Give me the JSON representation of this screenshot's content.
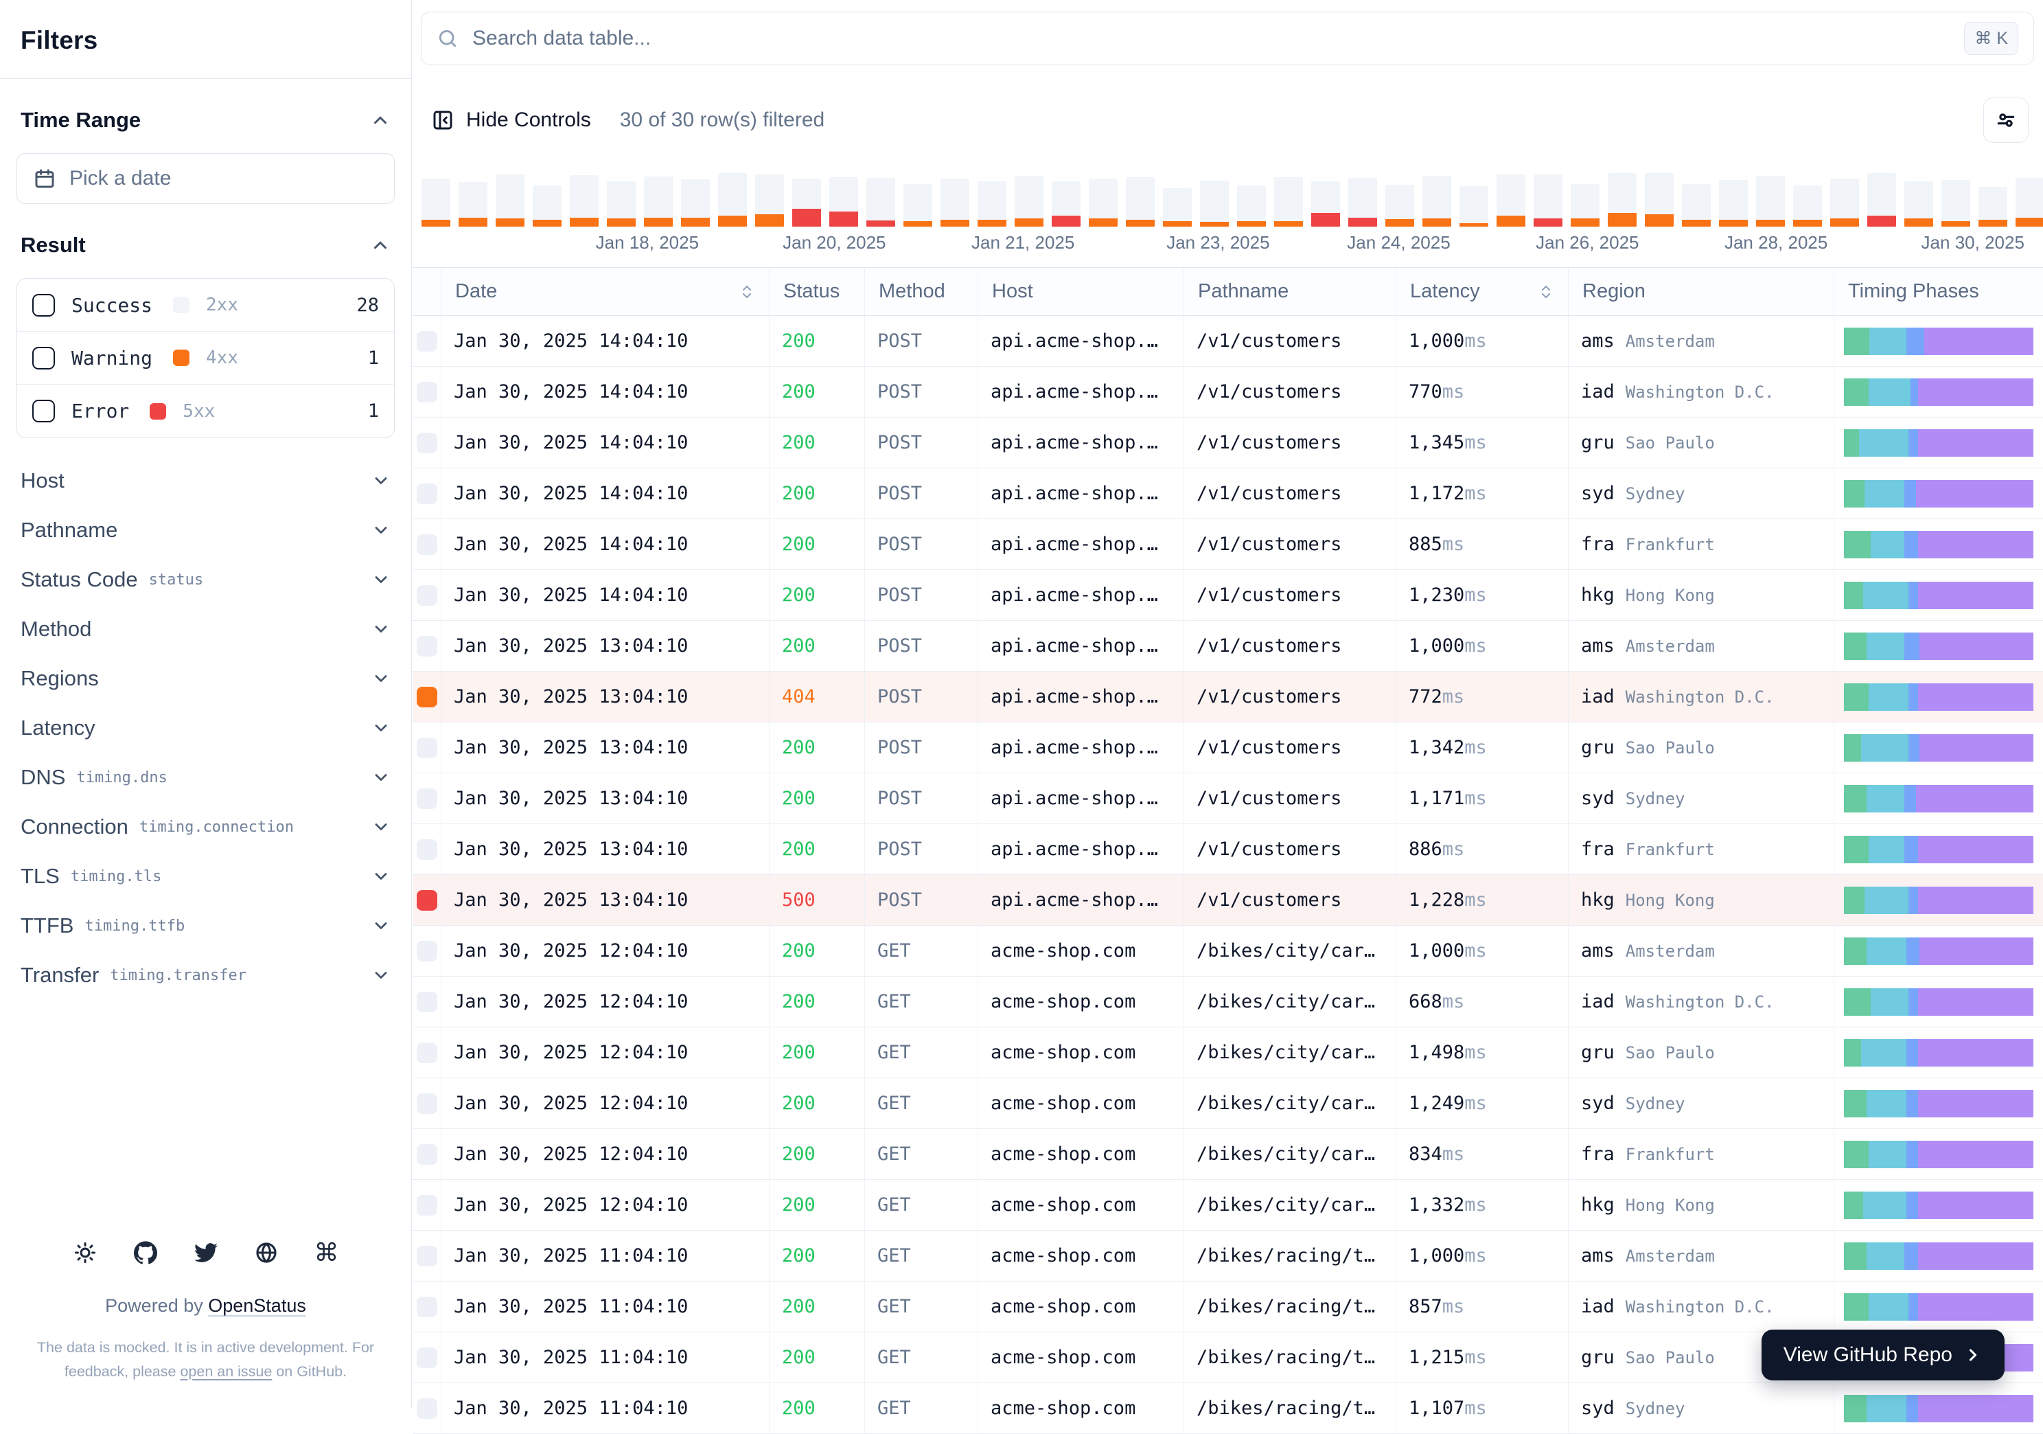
{
  "sidebar": {
    "title": "Filters",
    "time_range": {
      "label": "Time Range",
      "date_placeholder": "Pick a date"
    },
    "result": {
      "label": "Result",
      "options": [
        {
          "label": "Success",
          "code": "2xx",
          "count": "28",
          "color": "#f1f5f9",
          "key": "success"
        },
        {
          "label": "Warning",
          "code": "4xx",
          "count": "1",
          "color": "#f97316",
          "key": "warning"
        },
        {
          "label": "Error",
          "code": "5xx",
          "count": "1",
          "color": "#ef4444",
          "key": "error"
        }
      ]
    },
    "sections": [
      {
        "label": "Host",
        "code": ""
      },
      {
        "label": "Pathname",
        "code": ""
      },
      {
        "label": "Status Code",
        "code": "status"
      },
      {
        "label": "Method",
        "code": ""
      },
      {
        "label": "Regions",
        "code": ""
      },
      {
        "label": "Latency",
        "code": ""
      },
      {
        "label": "DNS",
        "code": "timing.dns"
      },
      {
        "label": "Connection",
        "code": "timing.connection"
      },
      {
        "label": "TLS",
        "code": "timing.tls"
      },
      {
        "label": "TTFB",
        "code": "timing.ttfb"
      },
      {
        "label": "Transfer",
        "code": "timing.transfer"
      }
    ],
    "footer": {
      "powered_by": "Powered by ",
      "powered_link": "OpenStatus",
      "note_line1": "The data is mocked. It is in active development. For",
      "note_line2_pre": "feedback, please ",
      "note_link": "open an issue",
      "note_line2_post": " on GitHub."
    }
  },
  "search": {
    "placeholder": "Search data table...",
    "shortcut": "⌘ K"
  },
  "controls": {
    "hide_label": "Hide Controls",
    "filtered_text": "30 of 30 row(s) filtered"
  },
  "chart_data": {
    "type": "bar",
    "title": "",
    "xlabel": "",
    "ylabel": "",
    "legend": false,
    "colors": {
      "success": "#f1f5f9",
      "warning": "#f97316",
      "error": "#ef4444"
    },
    "x_labels": [
      {
        "text": "Jan 18, 2025",
        "pos": 14.0
      },
      {
        "text": "Jan 20, 2025",
        "pos": 25.6
      },
      {
        "text": "Jan 21, 2025",
        "pos": 37.3
      },
      {
        "text": "Jan 23, 2025",
        "pos": 49.4
      },
      {
        "text": "Jan 24, 2025",
        "pos": 60.6
      },
      {
        "text": "Jan 26, 2025",
        "pos": 72.3
      },
      {
        "text": "Jan 28, 2025",
        "pos": 84.0
      },
      {
        "text": "Jan 30, 2025",
        "pos": 96.2
      }
    ],
    "bars": [
      [
        60,
        10,
        "w"
      ],
      [
        52,
        13,
        "w"
      ],
      [
        64,
        12,
        "w"
      ],
      [
        50,
        10,
        "w"
      ],
      [
        62,
        13,
        "w"
      ],
      [
        54,
        12,
        "w"
      ],
      [
        60,
        13,
        "w"
      ],
      [
        56,
        13,
        "w"
      ],
      [
        62,
        16,
        "w"
      ],
      [
        58,
        18,
        "w"
      ],
      [
        44,
        26,
        "e"
      ],
      [
        50,
        22,
        "e"
      ],
      [
        62,
        9,
        "e"
      ],
      [
        54,
        8,
        "w"
      ],
      [
        60,
        10,
        "w"
      ],
      [
        56,
        10,
        "w"
      ],
      [
        62,
        12,
        "w"
      ],
      [
        50,
        16,
        "e"
      ],
      [
        58,
        12,
        "w"
      ],
      [
        62,
        10,
        "w"
      ],
      [
        48,
        8,
        "w"
      ],
      [
        60,
        7,
        "w"
      ],
      [
        52,
        8,
        "w"
      ],
      [
        64,
        8,
        "w"
      ],
      [
        46,
        20,
        "e"
      ],
      [
        58,
        13,
        "e"
      ],
      [
        50,
        11,
        "w"
      ],
      [
        62,
        12,
        "w"
      ],
      [
        54,
        5,
        "w"
      ],
      [
        60,
        16,
        "w"
      ],
      [
        64,
        12,
        "e"
      ],
      [
        50,
        12,
        "w"
      ],
      [
        58,
        20,
        "w"
      ],
      [
        62,
        18,
        "w"
      ],
      [
        52,
        10,
        "w"
      ],
      [
        58,
        10,
        "w"
      ],
      [
        64,
        10,
        "w"
      ],
      [
        50,
        10,
        "w"
      ],
      [
        58,
        12,
        "w"
      ],
      [
        62,
        16,
        "e"
      ],
      [
        54,
        12,
        "w"
      ],
      [
        60,
        8,
        "w"
      ],
      [
        48,
        10,
        "w"
      ],
      [
        58,
        13,
        "w"
      ]
    ]
  },
  "table": {
    "columns": [
      {
        "label": "Date",
        "sortable": true
      },
      {
        "label": "Status",
        "sortable": false
      },
      {
        "label": "Method",
        "sortable": false
      },
      {
        "label": "Host",
        "sortable": false
      },
      {
        "label": "Pathname",
        "sortable": false
      },
      {
        "label": "Latency",
        "sortable": true
      },
      {
        "label": "Region",
        "sortable": false
      },
      {
        "label": "Timing Phases",
        "sortable": false
      }
    ],
    "latency_unit": "ms",
    "timing_colors": {
      "dns": "#67caa0",
      "connection": "#70cbe0",
      "tls": "#77a5fa",
      "ttfb": "#b18cf6"
    },
    "rows": [
      {
        "date": "Jan 30, 2025 14:04:10",
        "status": "200",
        "method": "POST",
        "host": "api.acme-shop.…",
        "path": "/v1/customers",
        "latency": "1,000",
        "region": "ams",
        "city": "Amsterdam",
        "level": "ok",
        "timing": [
          13.5,
          19.5,
          9.5,
          57.5
        ]
      },
      {
        "date": "Jan 30, 2025 14:04:10",
        "status": "200",
        "method": "POST",
        "host": "api.acme-shop.…",
        "path": "/v1/customers",
        "latency": "770",
        "region": "iad",
        "city": "Washington D.C.",
        "level": "ok",
        "timing": [
          13,
          22,
          4,
          61
        ]
      },
      {
        "date": "Jan 30, 2025 14:04:10",
        "status": "200",
        "method": "POST",
        "host": "api.acme-shop.…",
        "path": "/v1/customers",
        "latency": "1,345",
        "region": "gru",
        "city": "Sao Paulo",
        "level": "ok",
        "timing": [
          8,
          26,
          5,
          61
        ]
      },
      {
        "date": "Jan 30, 2025 14:04:10",
        "status": "200",
        "method": "POST",
        "host": "api.acme-shop.…",
        "path": "/v1/customers",
        "latency": "1,172",
        "region": "syd",
        "city": "Sydney",
        "level": "ok",
        "timing": [
          11,
          21,
          6,
          62
        ]
      },
      {
        "date": "Jan 30, 2025 14:04:10",
        "status": "200",
        "method": "POST",
        "host": "api.acme-shop.…",
        "path": "/v1/customers",
        "latency": "885",
        "region": "fra",
        "city": "Frankfurt",
        "level": "ok",
        "timing": [
          14,
          18,
          7,
          61
        ]
      },
      {
        "date": "Jan 30, 2025 14:04:10",
        "status": "200",
        "method": "POST",
        "host": "api.acme-shop.…",
        "path": "/v1/customers",
        "latency": "1,230",
        "region": "hkg",
        "city": "Hong Kong",
        "level": "ok",
        "timing": [
          10,
          24,
          5,
          61
        ]
      },
      {
        "date": "Jan 30, 2025 13:04:10",
        "status": "200",
        "method": "POST",
        "host": "api.acme-shop.…",
        "path": "/v1/customers",
        "latency": "1,000",
        "region": "ams",
        "city": "Amsterdam",
        "level": "ok",
        "timing": [
          12,
          20,
          8,
          60
        ]
      },
      {
        "date": "Jan 30, 2025 13:04:10",
        "status": "404",
        "method": "POST",
        "host": "api.acme-shop.…",
        "path": "/v1/customers",
        "latency": "772",
        "region": "iad",
        "city": "Washington D.C.",
        "level": "warn",
        "timing": [
          13,
          21,
          5,
          61
        ]
      },
      {
        "date": "Jan 30, 2025 13:04:10",
        "status": "200",
        "method": "POST",
        "host": "api.acme-shop.…",
        "path": "/v1/customers",
        "latency": "1,342",
        "region": "gru",
        "city": "Sao Paulo",
        "level": "ok",
        "timing": [
          9,
          25,
          6,
          60
        ]
      },
      {
        "date": "Jan 30, 2025 13:04:10",
        "status": "200",
        "method": "POST",
        "host": "api.acme-shop.…",
        "path": "/v1/customers",
        "latency": "1,171",
        "region": "syd",
        "city": "Sydney",
        "level": "ok",
        "timing": [
          12,
          20,
          6,
          62
        ]
      },
      {
        "date": "Jan 30, 2025 13:04:10",
        "status": "200",
        "method": "POST",
        "host": "api.acme-shop.…",
        "path": "/v1/customers",
        "latency": "886",
        "region": "fra",
        "city": "Frankfurt",
        "level": "ok",
        "timing": [
          13,
          19,
          7,
          61
        ]
      },
      {
        "date": "Jan 30, 2025 13:04:10",
        "status": "500",
        "method": "POST",
        "host": "api.acme-shop.…",
        "path": "/v1/customers",
        "latency": "1,228",
        "region": "hkg",
        "city": "Hong Kong",
        "level": "error",
        "timing": [
          11,
          23,
          5,
          61
        ]
      },
      {
        "date": "Jan 30, 2025 12:04:10",
        "status": "200",
        "method": "GET",
        "host": "acme-shop.com",
        "path": "/bikes/city/car…",
        "latency": "1,000",
        "region": "ams",
        "city": "Amsterdam",
        "level": "ok",
        "timing": [
          12,
          21,
          7,
          60
        ]
      },
      {
        "date": "Jan 30, 2025 12:04:10",
        "status": "200",
        "method": "GET",
        "host": "acme-shop.com",
        "path": "/bikes/city/car…",
        "latency": "668",
        "region": "iad",
        "city": "Washington D.C.",
        "level": "ok",
        "timing": [
          14,
          20,
          5,
          61
        ]
      },
      {
        "date": "Jan 30, 2025 12:04:10",
        "status": "200",
        "method": "GET",
        "host": "acme-shop.com",
        "path": "/bikes/city/car…",
        "latency": "1,498",
        "region": "gru",
        "city": "Sao Paulo",
        "level": "ok",
        "timing": [
          9,
          24,
          6,
          61
        ]
      },
      {
        "date": "Jan 30, 2025 12:04:10",
        "status": "200",
        "method": "GET",
        "host": "acme-shop.com",
        "path": "/bikes/city/car…",
        "latency": "1,249",
        "region": "syd",
        "city": "Sydney",
        "level": "ok",
        "timing": [
          12,
          21,
          6,
          61
        ]
      },
      {
        "date": "Jan 30, 2025 12:04:10",
        "status": "200",
        "method": "GET",
        "host": "acme-shop.com",
        "path": "/bikes/city/car…",
        "latency": "834",
        "region": "fra",
        "city": "Frankfurt",
        "level": "ok",
        "timing": [
          13,
          20,
          6,
          61
        ]
      },
      {
        "date": "Jan 30, 2025 12:04:10",
        "status": "200",
        "method": "GET",
        "host": "acme-shop.com",
        "path": "/bikes/city/car…",
        "latency": "1,332",
        "region": "hkg",
        "city": "Hong Kong",
        "level": "ok",
        "timing": [
          10,
          23,
          6,
          61
        ]
      },
      {
        "date": "Jan 30, 2025 11:04:10",
        "status": "200",
        "method": "GET",
        "host": "acme-shop.com",
        "path": "/bikes/racing/t…",
        "latency": "1,000",
        "region": "ams",
        "city": "Amsterdam",
        "level": "ok",
        "timing": [
          12,
          20,
          7,
          61
        ]
      },
      {
        "date": "Jan 30, 2025 11:04:10",
        "status": "200",
        "method": "GET",
        "host": "acme-shop.com",
        "path": "/bikes/racing/t…",
        "latency": "857",
        "region": "iad",
        "city": "Washington D.C.",
        "level": "ok",
        "timing": [
          13,
          21,
          5,
          61
        ]
      },
      {
        "date": "Jan 30, 2025 11:04:10",
        "status": "200",
        "method": "GET",
        "host": "acme-shop.com",
        "path": "/bikes/racing/t…",
        "latency": "1,215",
        "region": "gru",
        "city": "Sao Paulo",
        "level": "ok",
        "timing": [
          9,
          24,
          6,
          61
        ]
      },
      {
        "date": "Jan 30, 2025 11:04:10",
        "status": "200",
        "method": "GET",
        "host": "acme-shop.com",
        "path": "/bikes/racing/t…",
        "latency": "1,107",
        "region": "syd",
        "city": "Sydney",
        "level": "ok",
        "timing": [
          12,
          21,
          6,
          61
        ]
      }
    ]
  },
  "github_button": {
    "label": "View GitHub Repo"
  }
}
